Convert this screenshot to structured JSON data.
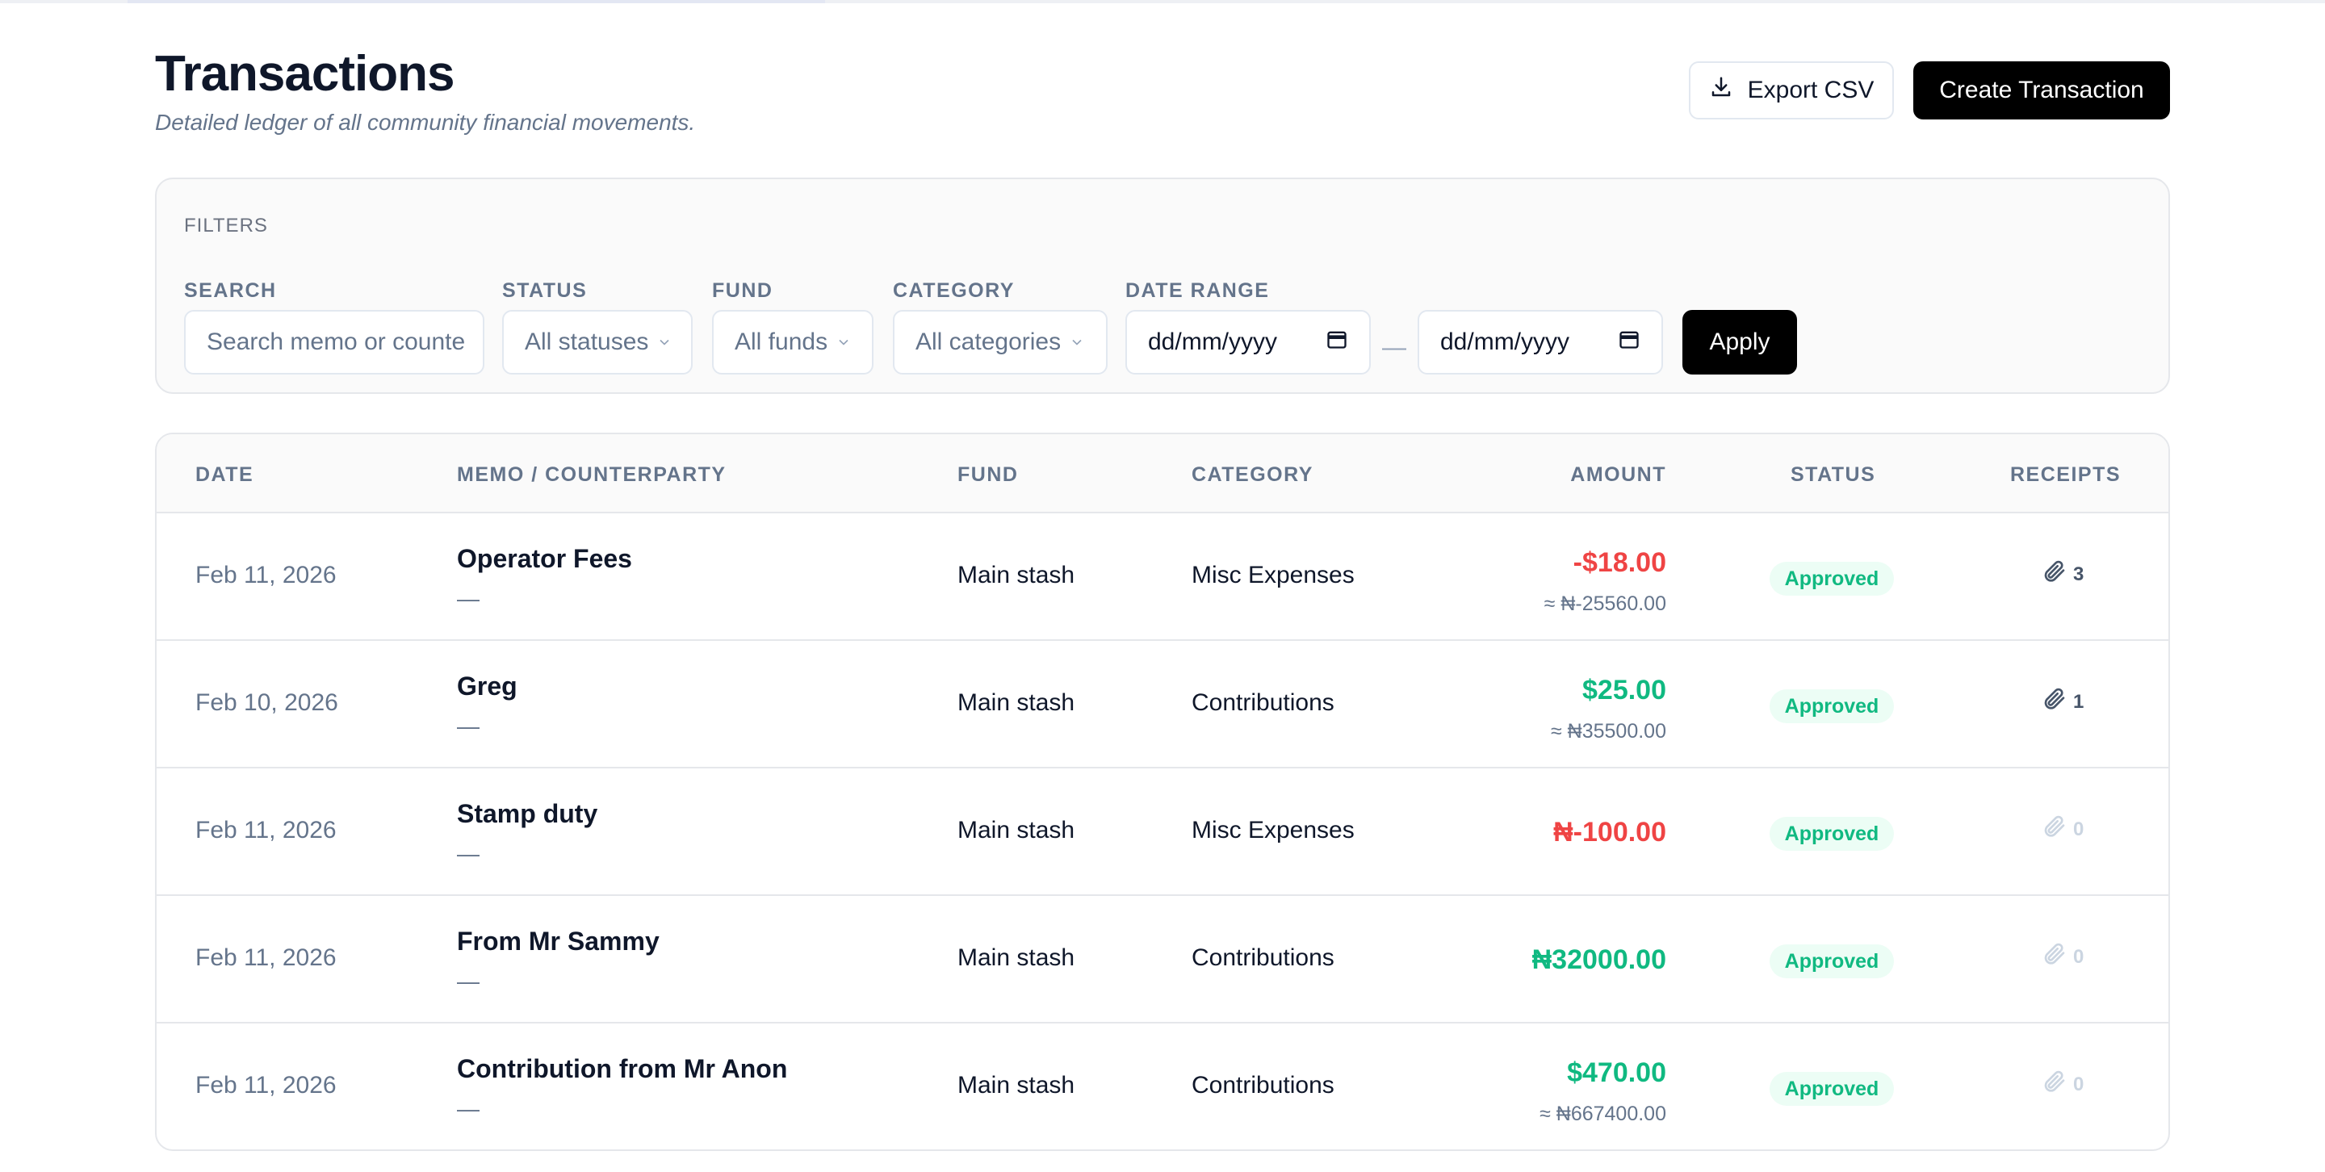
{
  "page": {
    "title": "Transactions",
    "subtitle": "Detailed ledger of all community financial movements."
  },
  "actions": {
    "export_label": "Export CSV",
    "create_label": "Create Transaction"
  },
  "filters": {
    "title": "FILTERS",
    "search_label": "SEARCH",
    "search_placeholder": "Search memo or counte",
    "status_label": "STATUS",
    "status_value": "All statuses",
    "fund_label": "FUND",
    "fund_value": "All funds",
    "category_label": "CATEGORY",
    "category_value": "All categories",
    "date_range_label": "DATE RANGE",
    "date_from": "dd/mm/yyyy",
    "date_to": "dd/mm/yyyy",
    "date_separator": "—",
    "apply_label": "Apply"
  },
  "table": {
    "columns": [
      "DATE",
      "MEMO / COUNTERPARTY",
      "FUND",
      "CATEGORY",
      "AMOUNT",
      "STATUS",
      "RECEIPTS"
    ],
    "rows": [
      {
        "date": "Feb 11, 2026",
        "memo": "Operator Fees",
        "counterparty": "—",
        "fund": "Main stash",
        "category": "Misc Expenses",
        "amount": "-$18.00",
        "converted": "≈ ₦-25560.00",
        "amount_sign": "negative",
        "status": "Approved",
        "receipts": "3"
      },
      {
        "date": "Feb 10, 2026",
        "memo": "Greg",
        "counterparty": "—",
        "fund": "Main stash",
        "category": "Contributions",
        "amount": "$25.00",
        "converted": "≈ ₦35500.00",
        "amount_sign": "positive",
        "status": "Approved",
        "receipts": "1"
      },
      {
        "date": "Feb 11, 2026",
        "memo": "Stamp duty",
        "counterparty": "—",
        "fund": "Main stash",
        "category": "Misc Expenses",
        "amount": "₦-100.00",
        "converted": "",
        "amount_sign": "negative",
        "status": "Approved",
        "receipts": "0"
      },
      {
        "date": "Feb 11, 2026",
        "memo": "From Mr Sammy",
        "counterparty": "—",
        "fund": "Main stash",
        "category": "Contributions",
        "amount": "₦32000.00",
        "converted": "",
        "amount_sign": "positive",
        "status": "Approved",
        "receipts": "0"
      },
      {
        "date": "Feb 11, 2026",
        "memo": "Contribution from Mr Anon",
        "counterparty": "—",
        "fund": "Main stash",
        "category": "Contributions",
        "amount": "$470.00",
        "converted": "≈ ₦667400.00",
        "amount_sign": "positive",
        "status": "Approved",
        "receipts": "0"
      }
    ]
  },
  "colors": {
    "negative": "#ef4444",
    "positive": "#10b981",
    "badge_bg": "#ecfdf5",
    "primary_button": "#000000"
  },
  "icons": {
    "export": "download-icon",
    "select": "chevron-down-icon",
    "date": "calendar-icon",
    "receipt": "paperclip-icon"
  }
}
